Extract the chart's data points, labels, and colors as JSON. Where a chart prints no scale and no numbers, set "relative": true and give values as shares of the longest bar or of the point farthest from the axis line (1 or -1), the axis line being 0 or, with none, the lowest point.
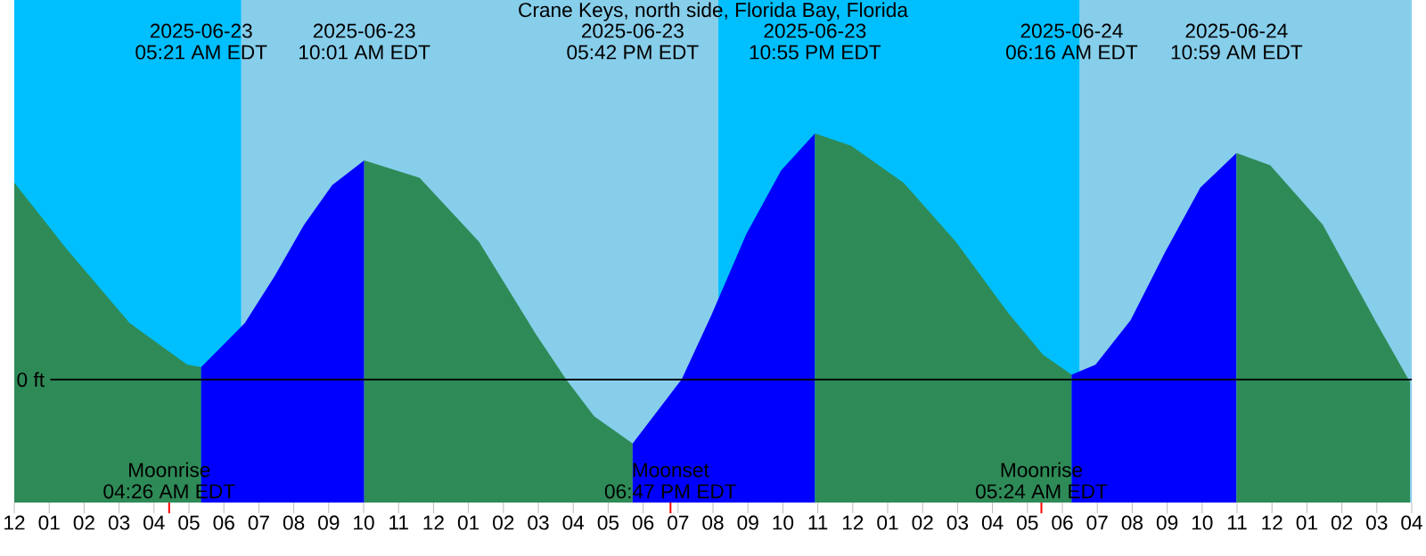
{
  "chart_data": {
    "type": "area",
    "title": "Crane Keys, north side, Florida Bay, Florida",
    "relative": true,
    "xlim": [
      "2025-06-23T00:00",
      "2025-06-24T16:00"
    ],
    "xticks": [
      {
        "value": "2025-06-23T00:00",
        "label": "12"
      },
      {
        "value": "2025-06-23T01:00",
        "label": "01"
      },
      {
        "value": "2025-06-23T02:00",
        "label": "02"
      },
      {
        "value": "2025-06-23T03:00",
        "label": "03"
      },
      {
        "value": "2025-06-23T04:00",
        "label": "04"
      },
      {
        "value": "2025-06-23T05:00",
        "label": "05"
      },
      {
        "value": "2025-06-23T06:00",
        "label": "06"
      },
      {
        "value": "2025-06-23T07:00",
        "label": "07"
      },
      {
        "value": "2025-06-23T08:00",
        "label": "08"
      },
      {
        "value": "2025-06-23T09:00",
        "label": "09"
      },
      {
        "value": "2025-06-23T10:00",
        "label": "10"
      },
      {
        "value": "2025-06-23T11:00",
        "label": "11"
      },
      {
        "value": "2025-06-23T12:00",
        "label": "12"
      },
      {
        "value": "2025-06-23T13:00",
        "label": "01"
      },
      {
        "value": "2025-06-23T14:00",
        "label": "02"
      },
      {
        "value": "2025-06-23T15:00",
        "label": "03"
      },
      {
        "value": "2025-06-23T16:00",
        "label": "04"
      },
      {
        "value": "2025-06-23T17:00",
        "label": "05"
      },
      {
        "value": "2025-06-23T18:00",
        "label": "06"
      },
      {
        "value": "2025-06-23T19:00",
        "label": "07"
      },
      {
        "value": "2025-06-23T20:00",
        "label": "08"
      },
      {
        "value": "2025-06-23T21:00",
        "label": "09"
      },
      {
        "value": "2025-06-23T22:00",
        "label": "10"
      },
      {
        "value": "2025-06-23T23:00",
        "label": "11"
      },
      {
        "value": "2025-06-24T00:00",
        "label": "12"
      },
      {
        "value": "2025-06-24T01:00",
        "label": "01"
      },
      {
        "value": "2025-06-24T02:00",
        "label": "02"
      },
      {
        "value": "2025-06-24T03:00",
        "label": "03"
      },
      {
        "value": "2025-06-24T04:00",
        "label": "04"
      },
      {
        "value": "2025-06-24T05:00",
        "label": "05"
      },
      {
        "value": "2025-06-24T06:00",
        "label": "06"
      },
      {
        "value": "2025-06-24T07:00",
        "label": "07"
      },
      {
        "value": "2025-06-24T08:00",
        "label": "08"
      },
      {
        "value": "2025-06-24T09:00",
        "label": "09"
      },
      {
        "value": "2025-06-24T10:00",
        "label": "10"
      },
      {
        "value": "2025-06-24T11:00",
        "label": "11"
      },
      {
        "value": "2025-06-24T12:00",
        "label": "12"
      },
      {
        "value": "2025-06-24T13:00",
        "label": "01"
      },
      {
        "value": "2025-06-24T14:00",
        "label": "02"
      },
      {
        "value": "2025-06-24T15:00",
        "label": "03"
      },
      {
        "value": "2025-06-24T16:00",
        "label": "04"
      }
    ],
    "series": [
      {
        "color": "#2e8b57",
        "x": [
          "2025-06-23T00:00",
          "2025-06-23T01:30",
          "2025-06-23T03:18",
          "2025-06-23T04:57",
          "2025-06-23T05:21"
        ],
        "values": [
          0.8,
          0.53,
          0.23,
          0.06,
          0.05
        ]
      },
      {
        "color": "#0000ff",
        "x": [
          "2025-06-23T05:21",
          "2025-06-23T06:36",
          "2025-06-23T07:27",
          "2025-06-23T08:18",
          "2025-06-23T09:06",
          "2025-06-23T10:01"
        ],
        "values": [
          0.05,
          0.23,
          0.42,
          0.63,
          0.79,
          0.89
        ]
      },
      {
        "color": "#2e8b57",
        "x": [
          "2025-06-23T10:01",
          "2025-06-23T11:36",
          "2025-06-23T13:18",
          "2025-06-23T14:57",
          "2025-06-23T15:48",
          "2025-06-23T16:36",
          "2025-06-23T17:42"
        ],
        "values": [
          0.89,
          0.82,
          0.56,
          0.18,
          0.0,
          -0.15,
          -0.26
        ]
      },
      {
        "color": "#0000ff",
        "x": [
          "2025-06-23T17:42",
          "2025-06-23T19:06",
          "2025-06-23T19:57",
          "2025-06-23T20:57",
          "2025-06-23T21:57",
          "2025-06-23T22:55"
        ],
        "values": [
          -0.26,
          0.0,
          0.26,
          0.59,
          0.85,
          1.0
        ]
      },
      {
        "color": "#2e8b57",
        "x": [
          "2025-06-23T22:55",
          "2025-06-23T23:57",
          "2025-06-24T01:27",
          "2025-06-24T02:57",
          "2025-06-24T04:27",
          "2025-06-24T05:27",
          "2025-06-24T06:16"
        ],
        "values": [
          1.0,
          0.95,
          0.8,
          0.56,
          0.27,
          0.1,
          0.02
        ]
      },
      {
        "color": "#0000ff",
        "x": [
          "2025-06-24T06:16",
          "2025-06-24T06:57",
          "2025-06-24T07:57",
          "2025-06-24T08:57",
          "2025-06-24T09:57",
          "2025-06-24T10:59"
        ],
        "values": [
          0.02,
          0.06,
          0.24,
          0.52,
          0.78,
          0.92
        ]
      },
      {
        "color": "#2e8b57",
        "x": [
          "2025-06-24T10:59",
          "2025-06-24T11:57",
          "2025-06-24T13:27",
          "2025-06-24T14:57",
          "2025-06-24T15:57"
        ],
        "values": [
          0.92,
          0.87,
          0.63,
          0.24,
          -0.01
        ]
      }
    ],
    "bands": [
      {
        "axis": "x",
        "from": "2025-06-23T00:00",
        "to": "2025-06-23T06:30",
        "color": "#00bfff"
      },
      {
        "axis": "x",
        "from": "2025-06-23T06:30",
        "to": "2025-06-23T20:09",
        "color": "#87ceeb"
      },
      {
        "axis": "x",
        "from": "2025-06-23T20:09",
        "to": "2025-06-24T06:30",
        "color": "#00bfff"
      },
      {
        "axis": "x",
        "from": "2025-06-24T06:30",
        "to": "2025-06-24T16:00",
        "color": "#87ceeb"
      }
    ],
    "ref_lines": [
      {
        "axis": "y",
        "value": 0,
        "label": "0 ft"
      },
      {
        "axis": "x",
        "value": "2025-06-23T04:26",
        "label": "Moonrise",
        "color": "#ff0000"
      },
      {
        "axis": "x",
        "value": "2025-06-23T18:47",
        "label": "Moonset",
        "color": "#ff0000"
      },
      {
        "axis": "x",
        "value": "2025-06-24T05:24",
        "label": "Moonrise",
        "color": "#ff0000"
      }
    ],
    "annotations": [
      "2025-06-23",
      "05:21 AM EDT",
      "2025-06-23",
      "10:01 AM EDT",
      "2025-06-23",
      "05:42 PM EDT",
      "2025-06-23",
      "10:55 PM EDT",
      "2025-06-24",
      "06:16 AM EDT",
      "2025-06-24",
      "10:59 AM EDT",
      "04:26 AM EDT",
      "06:47 PM EDT",
      "05:24 AM EDT"
    ]
  }
}
